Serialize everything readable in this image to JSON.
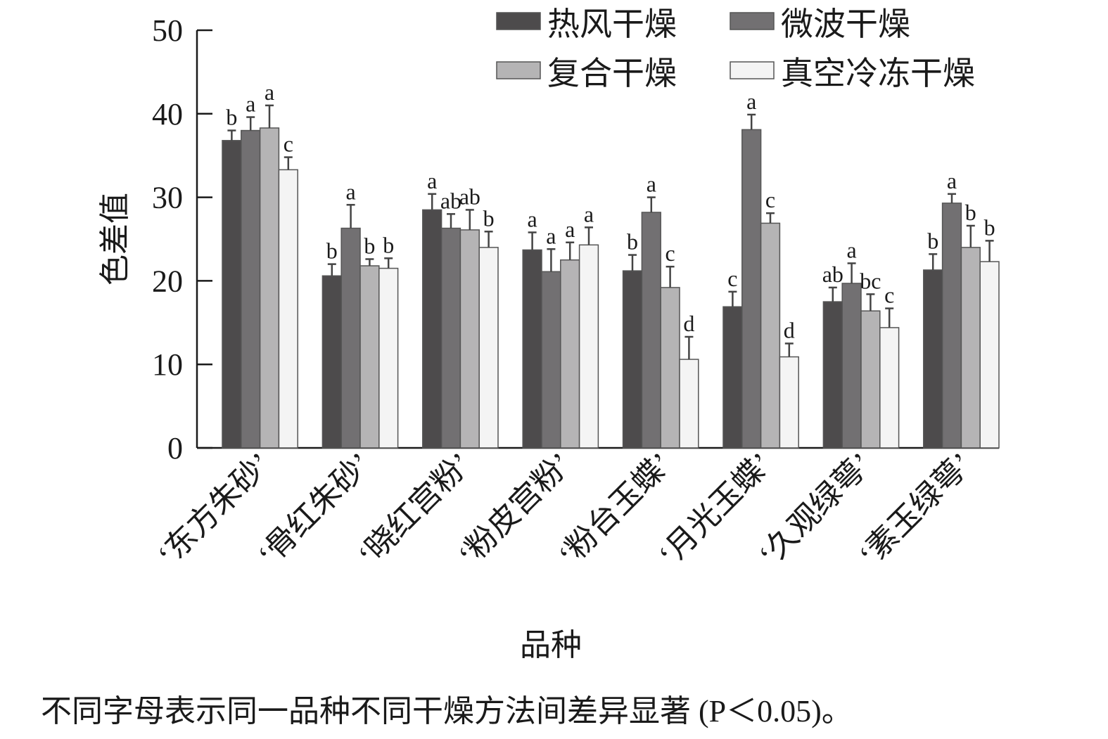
{
  "chart_data": {
    "type": "bar",
    "ylabel": "色差值",
    "xlabel": "品种",
    "ylim": [
      0,
      50
    ],
    "yticks": [
      0,
      10,
      20,
      30,
      40,
      50
    ],
    "grid": false,
    "legend_position": "top-right",
    "categories": [
      "‘东方朱砂’",
      "‘骨红朱砂’",
      "‘晓红宫粉’",
      "‘粉皮宫粉’",
      "‘粉台玉蝶’",
      "‘月光玉蝶’",
      "‘久观绿萼’",
      "‘素玉绿萼’"
    ],
    "series": [
      {
        "name": "热风干燥",
        "color": "#4d4b4c",
        "values": [
          36.8,
          20.6,
          28.5,
          23.7,
          21.2,
          16.9,
          17.5,
          21.3
        ],
        "errors": [
          1.2,
          1.4,
          1.9,
          2.1,
          1.9,
          1.8,
          1.7,
          1.9
        ],
        "letters": [
          "b",
          "b",
          "a",
          "a",
          "b",
          "c",
          "ab",
          "b"
        ]
      },
      {
        "name": "微波干燥",
        "color": "#727072",
        "values": [
          38.0,
          26.3,
          26.3,
          21.1,
          28.2,
          38.1,
          19.7,
          29.3
        ],
        "errors": [
          1.6,
          2.8,
          1.7,
          2.7,
          1.8,
          1.8,
          2.4,
          1.1
        ],
        "letters": [
          "a",
          "a",
          "ab",
          "a",
          "a",
          "a",
          "a",
          "a"
        ]
      },
      {
        "name": "复合干燥",
        "color": "#b5b4b5",
        "values": [
          38.3,
          21.8,
          26.1,
          22.5,
          19.2,
          26.9,
          16.4,
          24.0
        ],
        "errors": [
          2.7,
          0.8,
          2.4,
          2.1,
          2.5,
          1.2,
          2.0,
          2.6
        ],
        "letters": [
          "a",
          "b",
          "ab",
          "a",
          "c",
          "c",
          "bc",
          "b"
        ]
      },
      {
        "name": "真空冷冻干燥",
        "color": "#f4f4f4",
        "values": [
          33.3,
          21.5,
          24.0,
          24.3,
          10.6,
          10.9,
          14.4,
          22.3
        ],
        "errors": [
          1.5,
          1.2,
          1.9,
          2.1,
          2.7,
          1.6,
          2.3,
          2.5
        ],
        "letters": [
          "c",
          "b",
          "b",
          "a",
          "d",
          "d",
          "c",
          "b"
        ]
      }
    ]
  },
  "footnote": "不同字母表示同一品种不同干燥方法间差异显著 (P＜0.05)。"
}
